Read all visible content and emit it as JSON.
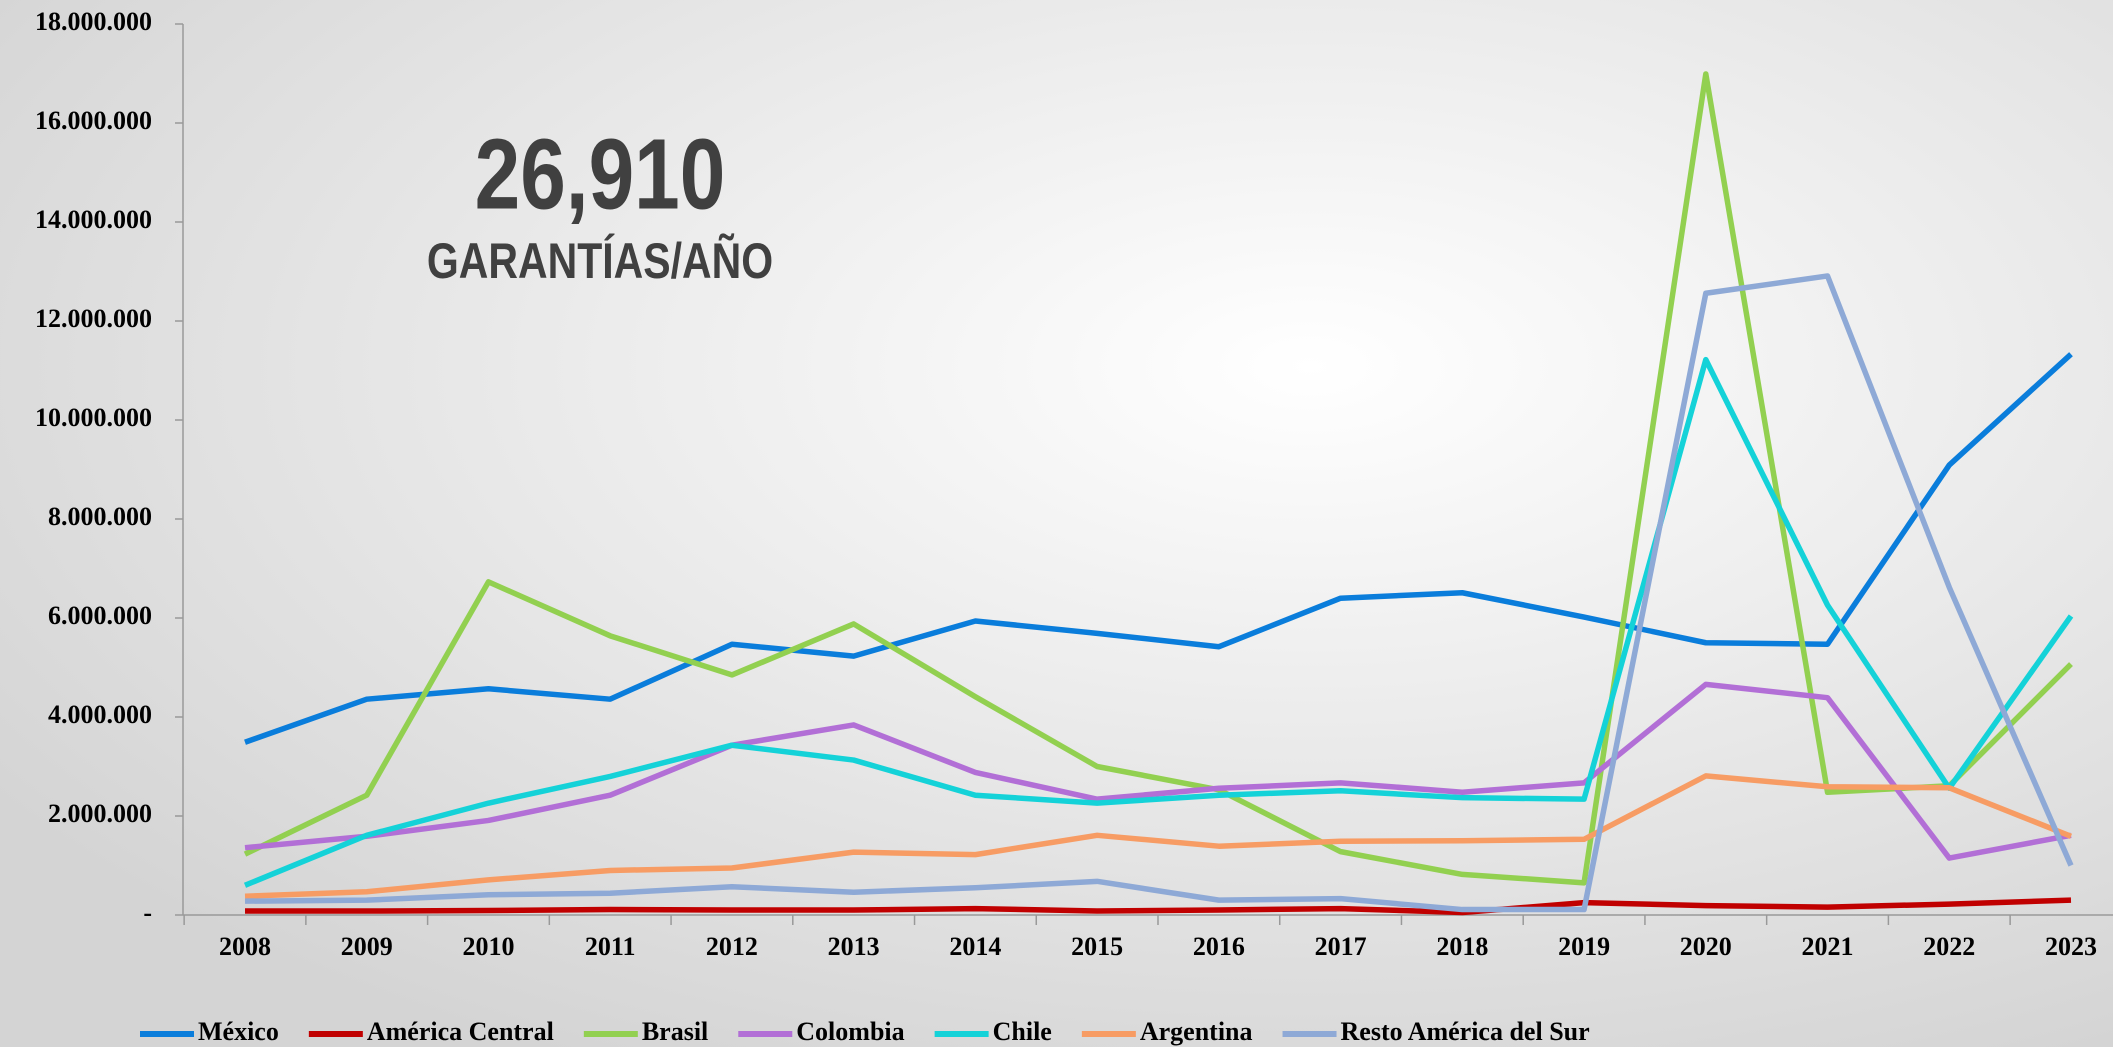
{
  "chart_data": {
    "type": "line",
    "annotations": [
      "26,910",
      "GARANTÍAS/AÑO"
    ],
    "categories": [
      "2008",
      "2009",
      "2010",
      "2011",
      "2012",
      "2013",
      "2014",
      "2015",
      "2016",
      "2017",
      "2018",
      "2019",
      "2020",
      "2021",
      "2022",
      "2023"
    ],
    "ylim": [
      0,
      18000000
    ],
    "yticks": [
      {
        "value": 0,
        "label": "-"
      },
      {
        "value": 2000000,
        "label": "2.000.000"
      },
      {
        "value": 4000000,
        "label": "4.000.000"
      },
      {
        "value": 6000000,
        "label": "6.000.000"
      },
      {
        "value": 8000000,
        "label": "8.000.000"
      },
      {
        "value": 10000000,
        "label": "10.000.000"
      },
      {
        "value": 12000000,
        "label": "12.000.000"
      },
      {
        "value": 14000000,
        "label": "14.000.000"
      },
      {
        "value": 16000000,
        "label": "16.000.000"
      },
      {
        "value": 18000000,
        "label": "18.000.000"
      }
    ],
    "legend": "bottom",
    "series": [
      {
        "name": "México",
        "color": "#0a7ddb",
        "values": [
          3490000,
          4360000,
          4570000,
          4360000,
          5470000,
          5230000,
          5940000,
          5690000,
          5420000,
          6400000,
          6510000,
          6020000,
          5500000,
          5470000,
          9090000,
          11330000
        ]
      },
      {
        "name": "América Central",
        "color": "#c00000",
        "values": [
          80000,
          80000,
          90000,
          110000,
          100000,
          100000,
          130000,
          80000,
          100000,
          130000,
          50000,
          250000,
          190000,
          160000,
          220000,
          300000
        ]
      },
      {
        "name": "Brasil",
        "color": "#92d050",
        "values": [
          1230000,
          2420000,
          6730000,
          5640000,
          4850000,
          5880000,
          4410000,
          3000000,
          2530000,
          1280000,
          820000,
          650000,
          16990000,
          2480000,
          2610000,
          5070000
        ]
      },
      {
        "name": "Colombia",
        "color": "#b26fd6",
        "values": [
          1360000,
          1590000,
          1910000,
          2420000,
          3430000,
          3840000,
          2880000,
          2340000,
          2560000,
          2670000,
          2480000,
          2670000,
          4660000,
          4390000,
          1150000,
          1610000
        ]
      },
      {
        "name": "Chile",
        "color": "#14d2d8",
        "values": [
          600000,
          1610000,
          2260000,
          2800000,
          3430000,
          3130000,
          2420000,
          2260000,
          2420000,
          2510000,
          2370000,
          2340000,
          11220000,
          6260000,
          2560000,
          6040000
        ]
      },
      {
        "name": "Argentina",
        "color": "#f79c64",
        "values": [
          380000,
          470000,
          710000,
          900000,
          950000,
          1270000,
          1220000,
          1610000,
          1390000,
          1490000,
          1500000,
          1530000,
          2810000,
          2590000,
          2570000,
          1590000
        ]
      },
      {
        "name": "Resto América del Sur",
        "color": "#8ea9d6",
        "values": [
          280000,
          300000,
          410000,
          440000,
          570000,
          460000,
          550000,
          680000,
          300000,
          330000,
          110000,
          110000,
          12560000,
          12910000,
          6620000,
          1000000
        ]
      }
    ]
  }
}
